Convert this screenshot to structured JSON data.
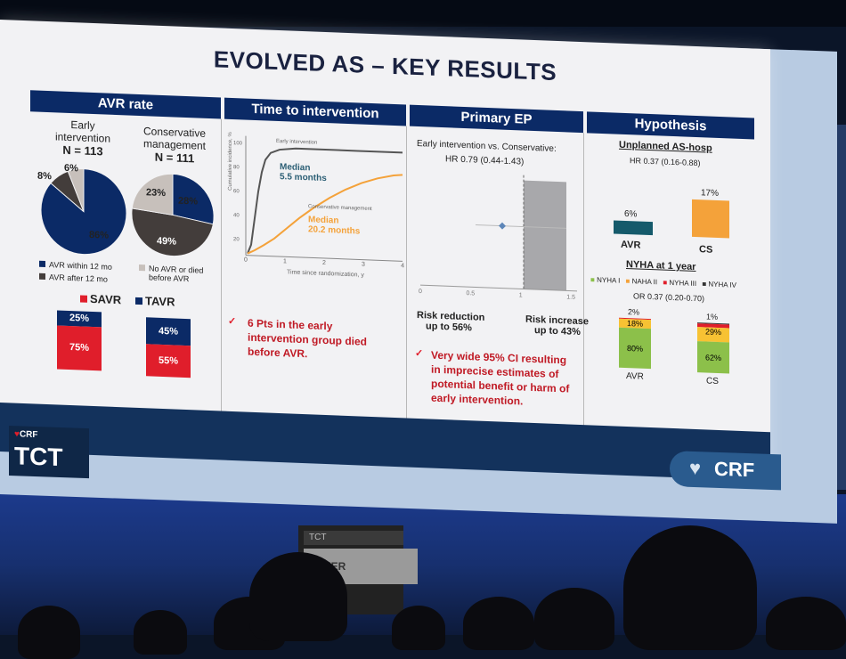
{
  "slide": {
    "title": "EVOLVED AS – KEY RESULTS"
  },
  "colors": {
    "navy": "#0b2a66",
    "red": "#e01e2b",
    "orange": "#f4a23a",
    "teal": "#155a6b",
    "green": "#8cc04a",
    "yellow": "#f7c233",
    "gray": "#c7c0bb",
    "darkgray": "#433d3b"
  },
  "avr_rate": {
    "header": "AVR rate",
    "early": {
      "line1": "Early",
      "line2": "intervention",
      "n": "N = 113"
    },
    "conservative": {
      "line1": "Conservative",
      "line2": "management",
      "n": "N = 111"
    },
    "early_pie": {
      "navy": 86,
      "darkgray": 8,
      "gray": 6
    },
    "early_labels": {
      "navy": "86%",
      "darkgray": "8%",
      "gray": "6%"
    },
    "cons_pie": {
      "navy": 28,
      "darkgray": 49,
      "gray": 23
    },
    "cons_labels": {
      "navy": "28%",
      "darkgray": "49%",
      "gray": "23%"
    },
    "legend": {
      "within": "AVR within 12 mo",
      "after": "AVR after 12 mo",
      "none_line1": "No AVR or died",
      "none_line2": "before AVR"
    },
    "savr_label": "SAVR",
    "tavr_label": "TAVR",
    "early_bar": {
      "tavr": 25,
      "savr": 75,
      "tavr_label": "25%",
      "savr_label": "75%"
    },
    "cons_bar": {
      "tavr": 45,
      "savr": 55,
      "tavr_label": "45%",
      "savr_label": "55%"
    }
  },
  "time_to_intervention": {
    "header": "Time to intervention",
    "yaxis": "Cumulative incidence, %",
    "xaxis": "Time since randomization, y",
    "yticks": [
      "100",
      "80",
      "60",
      "40",
      "20",
      "0"
    ],
    "xticks": [
      "0",
      "1",
      "2",
      "3",
      "4"
    ],
    "early_label": "Early intervention",
    "early_median_1": "Median",
    "early_median_2": "5.5 months",
    "cons_label": "Conservative management",
    "cons_median_1": "Median",
    "cons_median_2": "20.2 months",
    "note_1": "6 Pts in the early",
    "note_2": "intervention group died",
    "note_3": "before AVR."
  },
  "primary_ep": {
    "header": "Primary EP",
    "line1": "Early intervention vs. Conservative:",
    "line2": "HR 0.79 (0.44-1.43)",
    "hr": 0.79,
    "ci": [
      0.44,
      1.43
    ],
    "risk_red_1": "Risk reduction",
    "risk_red_2": "up to 56%",
    "risk_inc_1": "Risk increase",
    "risk_inc_2": "up to 43%",
    "xticks": [
      "0",
      "0.5",
      "1",
      "1.5"
    ],
    "note_1": "Very wide 95% CI resulting",
    "note_2": "in imprecise estimates of",
    "note_3": "potential benefit or harm of",
    "note_4": "early intervention."
  },
  "hypothesis": {
    "header": "Hypothesis",
    "unplanned_title": "Unplanned AS-hosp",
    "unplanned_hr": "HR 0.37 (0.16-0.88)",
    "bars": [
      {
        "name": "AVR",
        "value": 6,
        "label": "6%"
      },
      {
        "name": "CS",
        "value": 17,
        "label": "17%"
      }
    ],
    "nyha_title": "NYHA at 1 year",
    "legend": [
      "NYHA I",
      "NAHA II",
      "NYHA III",
      "NYHA IV"
    ],
    "or": "OR 0.37 (0.20-0.70)",
    "avr_stack": {
      "name": "AVR",
      "I": 80,
      "II": 18,
      "III": 2,
      "l_I": "80%",
      "l_II": "18%",
      "l_III": "2%"
    },
    "cs_stack": {
      "name": "CS",
      "I": 62,
      "II": 29,
      "III": 8,
      "IV": 1,
      "l_I": "62%",
      "l_II": "29%",
      "l_IV": "1%"
    }
  },
  "branding": {
    "crf_small": "CRF",
    "tct": "TCT",
    "crf_logo": "CRF",
    "podium_top": "TCT",
    "podium_screen": "KER"
  }
}
